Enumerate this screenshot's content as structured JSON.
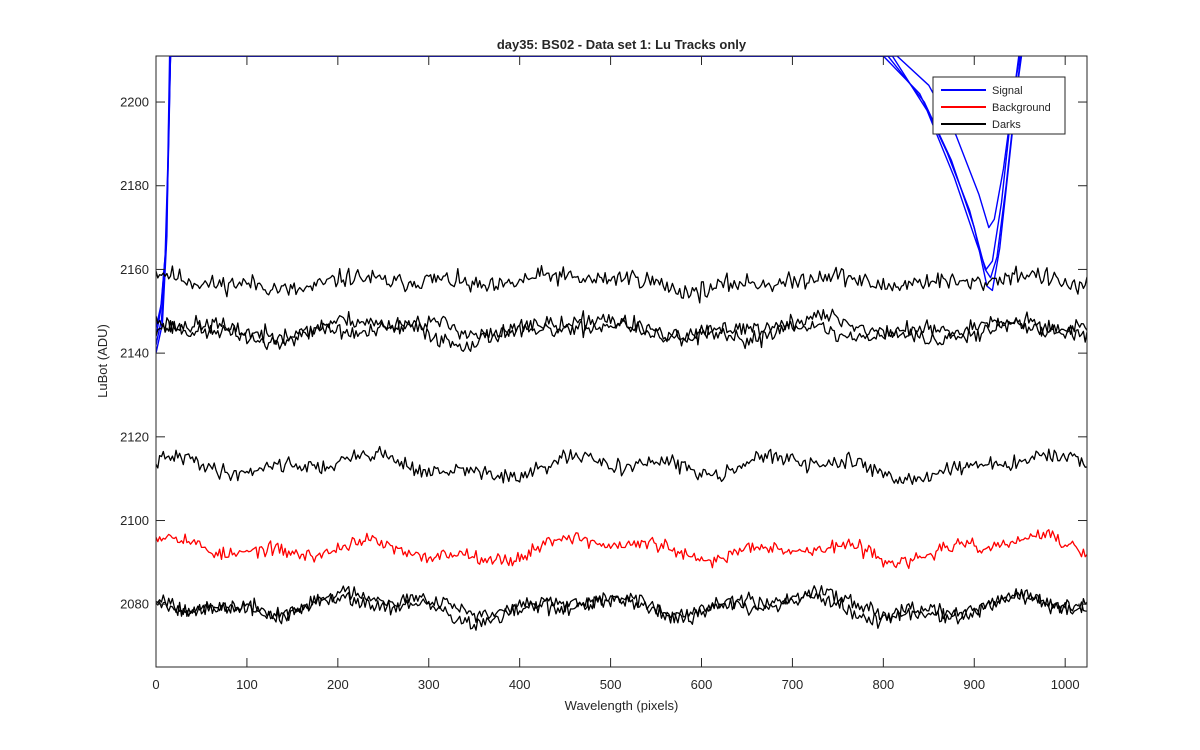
{
  "chart_data": {
    "type": "line",
    "title": "day35: BS02 - Data set 1: Lu Tracks only",
    "xlabel": "Wavelength (pixels)",
    "ylabel": "LuBot (ADU)",
    "xlim": [
      0,
      1024
    ],
    "ylim": [
      2065,
      2211
    ],
    "xticks": [
      0,
      100,
      200,
      300,
      400,
      500,
      600,
      700,
      800,
      900,
      1000
    ],
    "yticks": [
      2080,
      2100,
      2120,
      2140,
      2160,
      2180,
      2200
    ],
    "grid": false,
    "legend": {
      "placement": "top-right",
      "entries": [
        {
          "name": "Signal",
          "color": "#0000ff"
        },
        {
          "name": "Background",
          "color": "#ff0000"
        },
        {
          "name": "Darks",
          "color": "#000000"
        }
      ]
    },
    "series": [
      {
        "legend": "Signal",
        "color": "#0000ff",
        "role": "signal",
        "points": [
          [
            0,
            2144
          ],
          [
            5,
            2150
          ],
          [
            10,
            2163
          ],
          [
            13,
            2185
          ],
          [
            15,
            2211
          ],
          [
            800,
            2211
          ],
          [
            840,
            2202
          ],
          [
            870,
            2188
          ],
          [
            895,
            2174
          ],
          [
            912,
            2160
          ],
          [
            918,
            2158
          ],
          [
            925,
            2163
          ],
          [
            935,
            2180
          ],
          [
            945,
            2200
          ],
          [
            952,
            2211
          ]
        ]
      },
      {
        "legend": "Signal",
        "color": "#0000ff",
        "role": "signal",
        "points": [
          [
            0,
            2142
          ],
          [
            6,
            2148
          ],
          [
            11,
            2165
          ],
          [
            14,
            2190
          ],
          [
            16,
            2211
          ],
          [
            805,
            2211
          ],
          [
            845,
            2200
          ],
          [
            875,
            2186
          ],
          [
            900,
            2170
          ],
          [
            914,
            2156
          ],
          [
            920,
            2155
          ],
          [
            928,
            2165
          ],
          [
            938,
            2185
          ],
          [
            948,
            2205
          ],
          [
            951,
            2211
          ]
        ]
      },
      {
        "legend": "Signal",
        "color": "#0000ff",
        "role": "signal",
        "points": [
          [
            0,
            2146
          ],
          [
            6,
            2152
          ],
          [
            11,
            2166
          ],
          [
            14,
            2192
          ],
          [
            16,
            2211
          ],
          [
            815,
            2211
          ],
          [
            850,
            2204
          ],
          [
            880,
            2192
          ],
          [
            905,
            2178
          ],
          [
            916,
            2170
          ],
          [
            922,
            2172
          ],
          [
            932,
            2184
          ],
          [
            942,
            2200
          ],
          [
            950,
            2211
          ]
        ]
      },
      {
        "legend": "Signal",
        "color": "#0000ff",
        "role": "signal",
        "points": [
          [
            0,
            2140
          ],
          [
            7,
            2147
          ],
          [
            12,
            2168
          ],
          [
            14,
            2195
          ],
          [
            16,
            2211
          ],
          [
            810,
            2211
          ],
          [
            848,
            2198
          ],
          [
            878,
            2182
          ],
          [
            903,
            2166
          ],
          [
            913,
            2160
          ],
          [
            920,
            2162
          ],
          [
            930,
            2176
          ],
          [
            940,
            2196
          ],
          [
            949,
            2211
          ]
        ]
      },
      {
        "legend": "Darks",
        "color": "#000000",
        "role": "dark",
        "base": 2157,
        "amplitude": 1.8,
        "noise": 2.2,
        "seed": 11
      },
      {
        "legend": "Darks",
        "color": "#000000",
        "role": "dark",
        "base": 2146,
        "amplitude": 2.2,
        "noise": 2.0,
        "seed": 23
      },
      {
        "legend": "Darks",
        "color": "#000000",
        "role": "dark",
        "base": 2145,
        "amplitude": 2.6,
        "noise": 2.0,
        "seed": 37
      },
      {
        "legend": "Darks",
        "color": "#000000",
        "role": "dark",
        "base": 2113,
        "amplitude": 2.6,
        "noise": 1.8,
        "seed": 41
      },
      {
        "legend": "Background",
        "color": "#ff0000",
        "role": "background",
        "base": 2093,
        "amplitude": 2.8,
        "noise": 1.6,
        "seed": 53
      },
      {
        "legend": "Darks",
        "color": "#000000",
        "role": "dark",
        "base": 2080,
        "amplitude": 2.6,
        "noise": 1.8,
        "seed": 67
      },
      {
        "legend": "Darks",
        "color": "#000000",
        "role": "dark",
        "base": 2079,
        "amplitude": 2.8,
        "noise": 1.8,
        "seed": 79
      }
    ]
  }
}
